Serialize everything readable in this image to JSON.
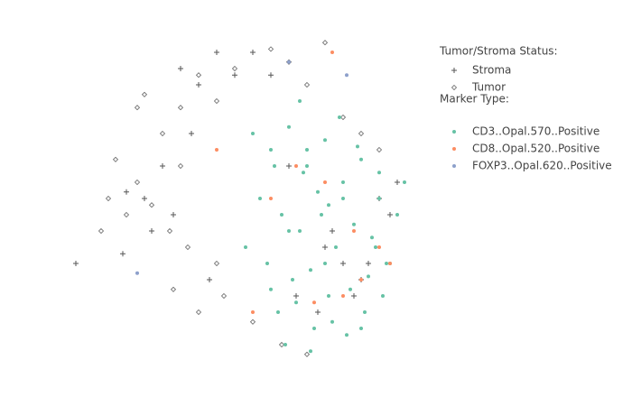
{
  "chart_data": {
    "type": "scatter",
    "xlim": [
      0,
      100
    ],
    "ylim": [
      0,
      100
    ],
    "legend_groups": [
      {
        "title": "Tumor/Stroma Status:",
        "series": [
          {
            "name": "Stroma",
            "symbol": "cross",
            "color": "#555555",
            "x": [
              30,
              35,
              40,
              25,
              20,
              28,
              33,
              45,
              70,
              75,
              80,
              88,
              90,
              62,
              68,
              72,
              85,
              15,
              22,
              38,
              50,
              55,
              78,
              82,
              60,
              14,
              1
            ],
            "y": [
              90,
              85,
              95,
              60,
              50,
              45,
              70,
              88,
              35,
              30,
              25,
              45,
              55,
              20,
              15,
              40,
              50,
              52,
              40,
              25,
              95,
              88,
              20,
              30,
              60,
              33,
              30
            ]
          },
          {
            "name": "Tumor",
            "symbol": "diamond-open",
            "color": "#666666",
            "x": [
              20,
              25,
              30,
              35,
              40,
              45,
              55,
              60,
              65,
              75,
              80,
              18,
              22,
              27,
              32,
              12,
              15,
              10,
              8,
              28,
              35,
              42,
              50,
              58,
              70,
              85,
              65,
              30,
              40,
              18
            ],
            "y": [
              82,
              70,
              78,
              88,
              80,
              90,
              96,
              92,
              85,
              75,
              70,
              55,
              48,
              40,
              35,
              62,
              45,
              50,
              40,
              22,
              15,
              20,
              12,
              5,
              98,
              65,
              2,
              60,
              30,
              78
            ]
          }
        ]
      },
      {
        "title": "Marker Type:",
        "series": [
          {
            "name": "CD3..Opal.570..Positive",
            "symbol": "circle",
            "color": "#66c2a5",
            "x": [
              50,
              55,
              60,
              65,
              70,
              75,
              80,
              85,
              90,
              52,
              58,
              63,
              68,
              73,
              78,
              83,
              88,
              92,
              48,
              54,
              61,
              66,
              71,
              77,
              82,
              87,
              57,
              62,
              67,
              72,
              76,
              81,
              86,
              56,
              64,
              69,
              74,
              79,
              84,
              59,
              66,
              71,
              60,
              70,
              80,
              55,
              65,
              75,
              85,
              63
            ],
            "y": [
              70,
              65,
              72,
              60,
              68,
              55,
              62,
              50,
              45,
              50,
              45,
              40,
              52,
              35,
              42,
              38,
              30,
              55,
              35,
              30,
              25,
              28,
              20,
              22,
              26,
              30,
              15,
              18,
              10,
              12,
              8,
              15,
              20,
              60,
              58,
              45,
              75,
              66,
              35,
              5,
              3,
              48,
              40,
              30,
              10,
              22,
              65,
              50,
              58,
              80
            ]
          },
          {
            "name": "CD8..Opal.520..Positive",
            "symbol": "circle",
            "color": "#fc8d62",
            "x": [
              62,
              70,
              78,
              85,
              55,
              75,
              88,
              67,
              80,
              40,
              50,
              72
            ],
            "y": [
              60,
              55,
              40,
              35,
              50,
              20,
              30,
              18,
              25,
              65,
              15,
              95
            ]
          },
          {
            "name": "FOXP3..Opal.620..Positive",
            "symbol": "circle",
            "color": "#8da0cb",
            "x": [
              60,
              76,
              18
            ],
            "y": [
              92,
              88,
              27
            ]
          }
        ]
      }
    ]
  }
}
